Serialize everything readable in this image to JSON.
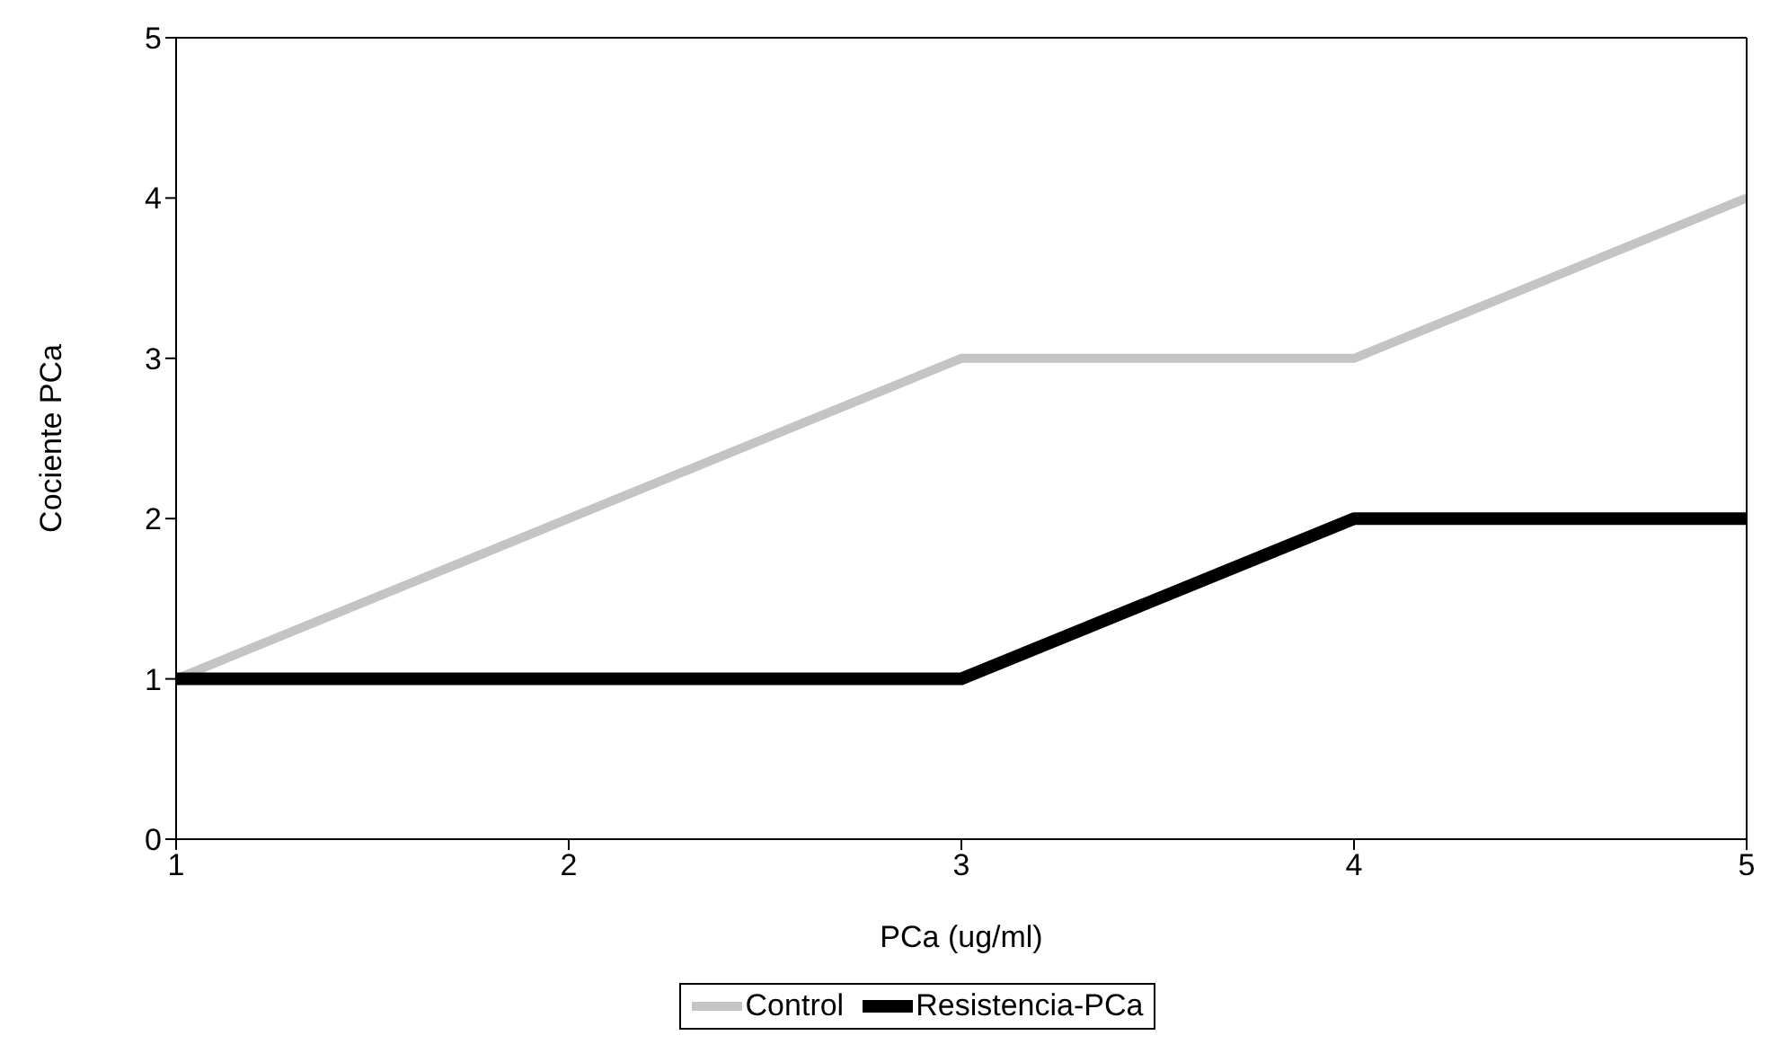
{
  "chart_data": {
    "type": "line",
    "xlabel": "PCa (ug/ml)",
    "ylabel": "Cociente PCa",
    "x": [
      1,
      2,
      3,
      4,
      5
    ],
    "series": [
      {
        "name": "Control",
        "color": "#c4c4c4",
        "values": [
          1,
          2,
          3,
          3,
          4
        ]
      },
      {
        "name": "Resistencia-PCa",
        "color": "#000000",
        "values": [
          1,
          1,
          1,
          2,
          2
        ]
      }
    ],
    "xlim": [
      1,
      5
    ],
    "xticks": [
      1,
      2,
      3,
      4,
      5
    ],
    "ylim": [
      0,
      5
    ],
    "yticks": [
      0,
      1,
      2,
      3,
      4,
      5
    ],
    "grid": false,
    "legend": "bottom",
    "marker": "none",
    "line_style": "solid"
  }
}
